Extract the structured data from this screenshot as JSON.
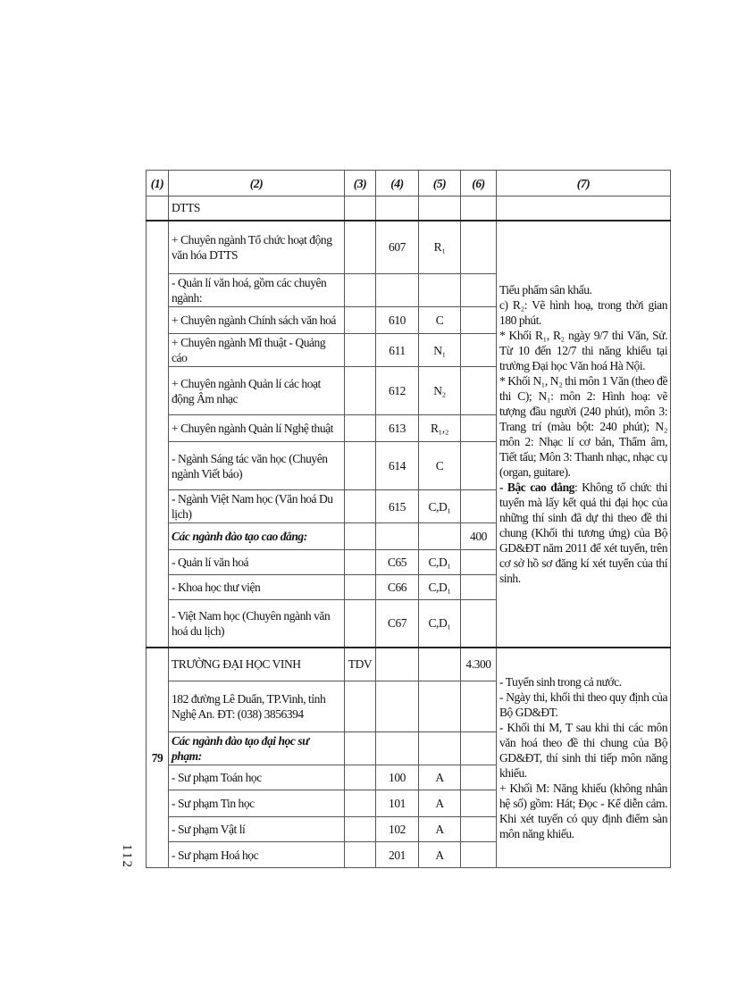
{
  "header": [
    "(1)",
    "(2)",
    "(3)",
    "(4)",
    "(5)",
    "(6)",
    "(7)"
  ],
  "rows": [
    {
      "name": "DTTS",
      "code": "",
      "group": "",
      "quota": ""
    },
    {
      "name": "+ Chuyên ngành Tổ chức hoạt động văn hóa DTTS",
      "code": "607",
      "group": "R₁",
      "quota": ""
    },
    {
      "name": "- Quản lí văn hoá, gồm các chuyên ngành:",
      "code": "",
      "group": "",
      "quota": ""
    },
    {
      "name": "+ Chuyên ngành Chính  sách văn hoá",
      "code": "610",
      "group": "C",
      "quota": ""
    },
    {
      "name": "+ Chuyên ngành Mĩ thuật - Quảng cáo",
      "code": "611",
      "group": "N₁",
      "quota": ""
    },
    {
      "name": "+ Chuyên ngành Quản lí các hoạt động Âm nhạc",
      "code": "612",
      "group": "N₂",
      "quota": ""
    },
    {
      "name": "+ Chuyên ngành Quản lí Nghệ thuật",
      "code": "613",
      "group": "R₁,₂",
      "quota": ""
    },
    {
      "name": "- Ngành Sáng tác văn học (Chuyên ngành Viết báo)",
      "code": "614",
      "group": "C",
      "quota": ""
    },
    {
      "name": "- Ngành Việt  Nam học (Văn hoá Du lịch)",
      "code": "615",
      "group": "C,D₁",
      "quota": ""
    },
    {
      "name": "Các ngành đào tạo cao đẳng:",
      "code": "",
      "group": "",
      "quota": "400",
      "italic": true
    },
    {
      "name": "- Quản lí văn hoá",
      "code": "C65",
      "group": "C,D₁",
      "quota": ""
    },
    {
      "name": "- Khoa học thư viện",
      "code": "C66",
      "group": "C,D₁",
      "quota": ""
    },
    {
      "name": "- Việt Nam học (Chuyên ngành văn hoá du lịch)",
      "code": "C67",
      "group": "C,D₁",
      "quota": ""
    }
  ],
  "notes1": [
    "Tiểu phẩm sân khấu.",
    "c) R₂: Vẽ hình hoạ, trong thời gian 180 phút.",
    "* Khối R₁, R₂ ngày 9/7 thi Văn, Sử. Từ 10 đến 12/7 thi năng khiếu tại trường Đại học Văn hoá Hà Nội.",
    "* Khối N₁, N₂ thi môn 1 Văn (theo đề thi C); N₁: môn 2: Hình hoạ: vẽ tượng đầu người (240 phút), môn 3: Trang trí (màu bột: 240 phút); N₂ môn 2: Nhạc lí cơ bản, Thẩm âm, Tiết tấu; Môn 3: Thanh nhạc, nhạc cụ (organ, guitare)."
  ],
  "notes1_last": {
    "bold": "- Bậc cao đẳng",
    "text": ": Không tổ chức thi tuyển mà lấy kết quả thi đại học của những thí sinh đã dự thi theo đề thi chung (Khối thi tương ứng) của Bộ GD&ĐT năm 2011 để xét tuyển, trên cơ sở hồ sơ đăng kí xét tuyển của thí sinh."
  },
  "school": {
    "number": "79",
    "name": "TRƯỜNG ĐẠI HỌC VINH",
    "symbol": "TDV",
    "quota": "4.300",
    "address": "182 đường Lê Duẩn, TP.Vinh, tỉnh Nghệ An. ĐT: (038) 3856394",
    "section": "Các ngành đào tạo đại học sư phạm:",
    "rows": [
      {
        "name": "- Sư phạm Toán học",
        "code": "100",
        "group": "A"
      },
      {
        "name": "- Sư phạm Tin học",
        "code": "101",
        "group": "A"
      },
      {
        "name": "- Sư phạm Vật lí",
        "code": "102",
        "group": "A"
      },
      {
        "name": "- Sư phạm Hoá học",
        "code": "201",
        "group": "A"
      }
    ],
    "notes": [
      "- Tuyển sinh trong cả nước.",
      "- Ngày thi, khối thi theo quy định của Bộ GD&ĐT.",
      "- Khối thi M, T sau khi thi các môn văn hoá theo đề thi chung của Bộ GD&ĐT, thí sinh thi tiếp môn năng khiếu.",
      "+ Khối M: Năng khiếu (không nhân hệ số) gồm: Hát; Đọc - Kể diễn cảm. Khi xét tuyển có quy định điểm sàn môn năng khiếu."
    ]
  },
  "page_number": "112"
}
